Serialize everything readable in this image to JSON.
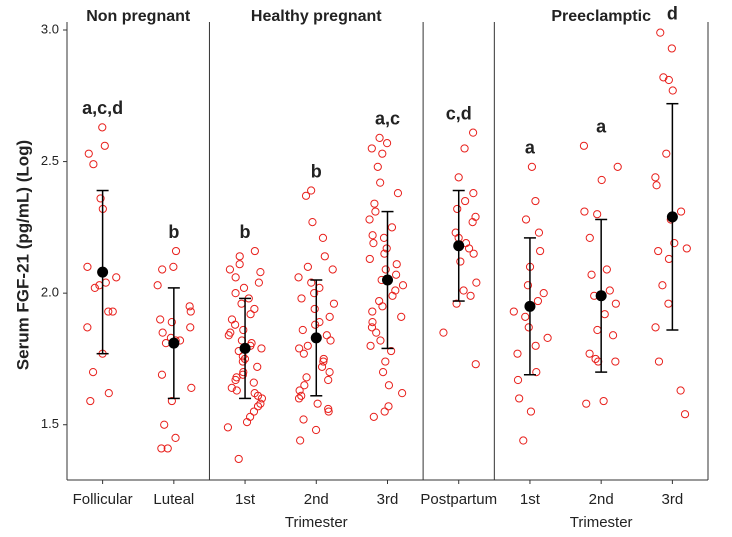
{
  "chart_data": {
    "type": "dot",
    "y_label": "Serum FGF-21 (pg/mL) (Log)",
    "ylim": [
      1.29,
      3.0
    ],
    "yticks": [
      1.5,
      {
        "value": 2,
        "label": "2.0"
      },
      2.5,
      {
        "value": 3,
        "label": "3.0"
      }
    ],
    "point_color": "#e8201c",
    "mean_color": "#000000",
    "groups": [
      {
        "name": "Non pregnant",
        "categories": [
          {
            "label": "Follicular",
            "letters": "a,c,d",
            "mean": 2.08,
            "sd": 0.31,
            "points": [
              2.63,
              2.56,
              2.53,
              2.49,
              2.36,
              2.32,
              2.1,
              2.06,
              2.04,
              2.03,
              2.02,
              1.93,
              1.93,
              1.87,
              1.77,
              1.7,
              1.62,
              1.59
            ]
          },
          {
            "label": "Luteal",
            "letters": "b",
            "mean": 1.81,
            "sd": 0.21,
            "points": [
              2.16,
              2.1,
              2.09,
              2.03,
              1.95,
              1.93,
              1.9,
              1.89,
              1.87,
              1.85,
              1.83,
              1.82,
              1.82,
              1.81,
              1.69,
              1.64,
              1.59,
              1.5,
              1.45,
              1.41,
              1.41
            ]
          }
        ]
      },
      {
        "name": "Healthy pregnant",
        "axis_label": "Trimester",
        "categories": [
          {
            "label": "1st",
            "letters": "b",
            "mean": 1.79,
            "sd": 0.19,
            "points": [
              2.16,
              2.14,
              2.11,
              2.09,
              2.08,
              2.06,
              2.04,
              2.02,
              2.0,
              1.98,
              1.96,
              1.94,
              1.92,
              1.9,
              1.88,
              1.86,
              1.85,
              1.84,
              1.82,
              1.81,
              1.8,
              1.79,
              1.78,
              1.76,
              1.75,
              1.74,
              1.72,
              1.7,
              1.69,
              1.68,
              1.67,
              1.66,
              1.64,
              1.63,
              1.62,
              1.61,
              1.6,
              1.58,
              1.57,
              1.55,
              1.53,
              1.51,
              1.49,
              1.37
            ]
          },
          {
            "label": "2nd",
            "letters": "b",
            "mean": 1.83,
            "sd": 0.22,
            "points": [
              2.39,
              2.37,
              2.27,
              2.21,
              2.14,
              2.1,
              2.09,
              2.06,
              2.04,
              2.02,
              2.0,
              1.98,
              1.96,
              1.94,
              1.91,
              1.89,
              1.88,
              1.86,
              1.84,
              1.82,
              1.8,
              1.79,
              1.77,
              1.75,
              1.74,
              1.72,
              1.7,
              1.68,
              1.67,
              1.65,
              1.63,
              1.61,
              1.6,
              1.58,
              1.56,
              1.55,
              1.52,
              1.48,
              1.44
            ]
          },
          {
            "label": "3rd",
            "letters": "a,c",
            "mean": 2.05,
            "sd": 0.26,
            "points": [
              2.59,
              2.57,
              2.55,
              2.53,
              2.48,
              2.42,
              2.38,
              2.34,
              2.31,
              2.28,
              2.25,
              2.22,
              2.21,
              2.19,
              2.17,
              2.15,
              2.13,
              2.11,
              2.09,
              2.07,
              2.05,
              2.03,
              2.01,
              1.99,
              1.97,
              1.95,
              1.93,
              1.91,
              1.89,
              1.87,
              1.85,
              1.82,
              1.8,
              1.78,
              1.74,
              1.7,
              1.65,
              1.62,
              1.57,
              1.55,
              1.53
            ]
          }
        ]
      },
      {
        "name": null,
        "categories": [
          {
            "label": "Postpartum",
            "letters": "c,d",
            "mean": 2.18,
            "sd": 0.21,
            "points": [
              2.61,
              2.55,
              2.44,
              2.38,
              2.35,
              2.32,
              2.29,
              2.27,
              2.23,
              2.21,
              2.19,
              2.17,
              2.15,
              2.12,
              2.04,
              2.01,
              1.99,
              1.96,
              1.85,
              1.73
            ]
          }
        ]
      },
      {
        "name": "Preeclamptic",
        "axis_label": "Trimester",
        "categories": [
          {
            "label": "1st",
            "letters": "a",
            "mean": 1.95,
            "sd": 0.26,
            "points": [
              2.48,
              2.35,
              2.28,
              2.23,
              2.16,
              2.1,
              2.03,
              2.0,
              1.97,
              1.93,
              1.91,
              1.87,
              1.83,
              1.8,
              1.77,
              1.7,
              1.67,
              1.6,
              1.55,
              1.44
            ]
          },
          {
            "label": "2nd",
            "letters": "a",
            "mean": 1.99,
            "sd": 0.29,
            "points": [
              2.56,
              2.48,
              2.43,
              2.31,
              2.3,
              2.21,
              2.09,
              2.07,
              2.01,
              1.99,
              1.96,
              1.92,
              1.86,
              1.84,
              1.77,
              1.75,
              1.74,
              1.74,
              1.59,
              1.58
            ]
          },
          {
            "label": "3rd",
            "letters": "d",
            "mean": 2.29,
            "sd": 0.43,
            "points": [
              2.99,
              2.93,
              2.82,
              2.81,
              2.77,
              2.53,
              2.44,
              2.41,
              2.31,
              2.28,
              2.19,
              2.17,
              2.16,
              2.13,
              2.03,
              1.96,
              1.87,
              1.74,
              1.63,
              1.54
            ]
          }
        ]
      }
    ]
  }
}
